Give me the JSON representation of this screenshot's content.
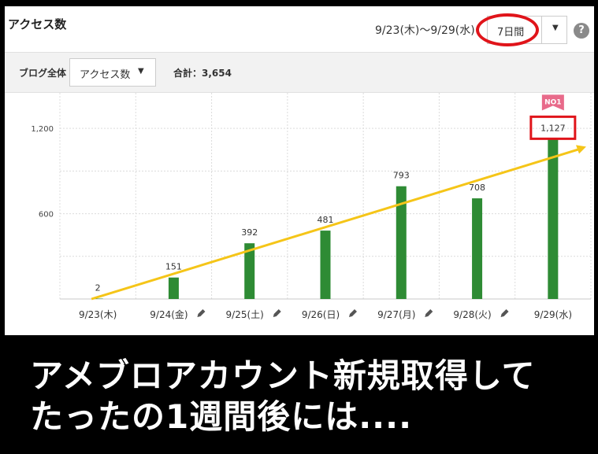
{
  "header": {
    "title": "アクセス数",
    "date_range": "9/23(木)〜9/29(水)",
    "period": "7日間",
    "help": "?"
  },
  "filters": {
    "scope": "ブログ全体",
    "metric": "アクセス数",
    "total": "合計：3,654"
  },
  "chart_data": {
    "type": "bar",
    "categories": [
      "9/23(木)",
      "9/24(金)",
      "9/25(土)",
      "9/26(日)",
      "9/27(月)",
      "9/28(火)",
      "9/29(水)"
    ],
    "values": [
      2,
      151,
      392,
      481,
      793,
      708,
      1127
    ],
    "value_labels": [
      "2",
      "151",
      "392",
      "481",
      "793",
      "708",
      "1,127"
    ],
    "edit_icon_on": [
      false,
      true,
      true,
      true,
      true,
      true,
      false
    ],
    "y_ticks": [
      600,
      1200
    ],
    "y_tick_labels": [
      "600",
      "1,200"
    ],
    "ylim": [
      0,
      1450
    ],
    "grid": true,
    "badge": "NO1",
    "bar_color": "#2e8b34",
    "trend_color": "#f5c518",
    "highlight_color": "#e0141a"
  },
  "caption": {
    "line1": "アメブロアカウント新規取得して",
    "line2": "たったの1週間後には...."
  }
}
